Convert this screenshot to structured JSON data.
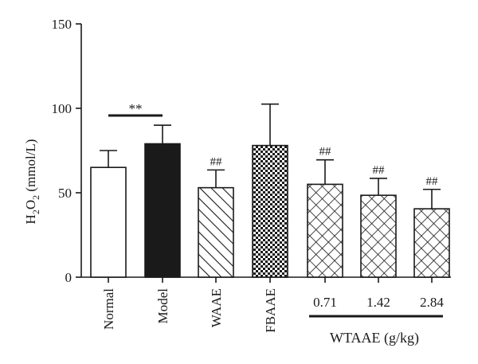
{
  "chart_data": {
    "type": "bar",
    "ylabel": "H2O2 (mmol/L)",
    "ylabel_parts": {
      "a": "H",
      "sub1": "2",
      "b": "O",
      "sub2": "2",
      "c": " (mmol/L)"
    },
    "ylim": [
      0,
      150
    ],
    "yticks": [
      "0",
      "50",
      "100",
      "150"
    ],
    "ytick_values": [
      0,
      50,
      100,
      150
    ],
    "categories": [
      "Normal",
      "Model",
      "WAAE",
      "FBAAE",
      "0.71",
      "1.42",
      "2.84"
    ],
    "values": [
      65,
      79,
      53,
      78,
      55,
      48.5,
      40.5
    ],
    "errors": [
      10,
      11,
      10.5,
      24.5,
      14.5,
      10,
      11.5
    ],
    "annotations": [
      "",
      "",
      "##",
      "",
      "##",
      "##",
      "##"
    ],
    "patterns": [
      "white",
      "black",
      "diagonal",
      "dots",
      "crosshatch",
      "crosshatch",
      "crosshatch"
    ],
    "significance_marker": {
      "text": "**",
      "from": "Normal",
      "to": "Model"
    },
    "group_label": {
      "text": "WTAAE (g/kg)",
      "members": [
        "0.71",
        "1.42",
        "2.84"
      ]
    },
    "colors": {
      "black": "#1a1a1a",
      "white": "#ffffff"
    }
  }
}
